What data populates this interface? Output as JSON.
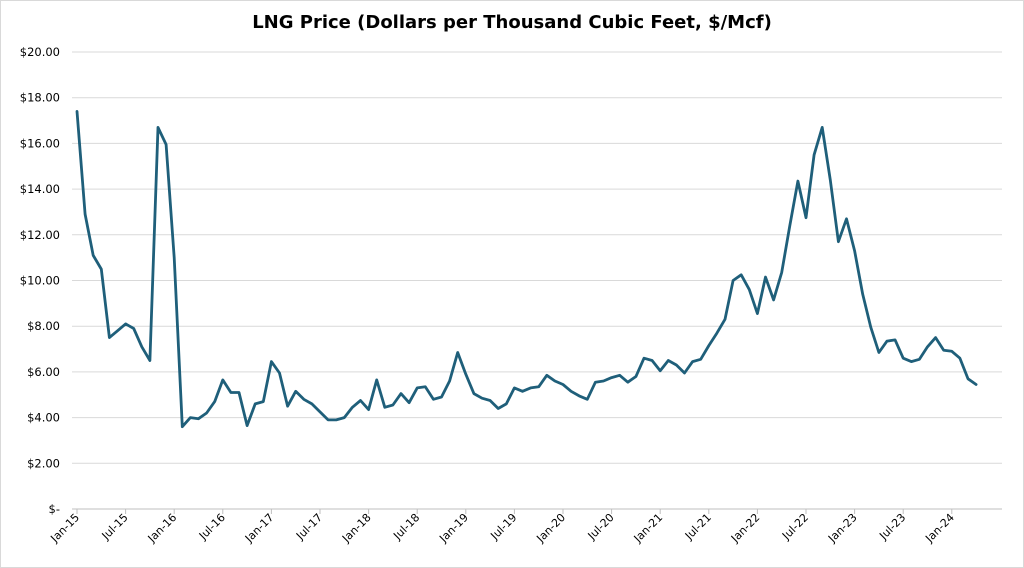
{
  "chart_data": {
    "type": "line",
    "title": "LNG Price (Dollars per Thousand Cubic Feet, $/Mcf)",
    "xlabel": "",
    "ylabel": "",
    "ylim": [
      0,
      20
    ],
    "grid": true,
    "y_ticks": [
      0,
      2,
      4,
      6,
      8,
      10,
      12,
      14,
      16,
      18,
      20
    ],
    "y_tick_labels": [
      "$-",
      "$2.00",
      "$4.00",
      "$6.00",
      "$8.00",
      "$10.00",
      "$12.00",
      "$14.00",
      "$16.00",
      "$18.00",
      "$20.00"
    ],
    "x_tick_labels": [
      "Jan-15",
      "Jul-15",
      "Jan-16",
      "Jul-16",
      "Jan-17",
      "Jul-17",
      "Jan-18",
      "Jul-18",
      "Jan-19",
      "Jul-19",
      "Jan-20",
      "Jul-20",
      "Jan-21",
      "Jul-21",
      "Jan-22",
      "Jul-22",
      "Jan-23",
      "Jul-23",
      "Jan-24"
    ],
    "x_tick_interval_months": 6,
    "start_month": "Jan-15",
    "series": [
      {
        "name": "LNG Price",
        "color": "#1f5f7a",
        "values": [
          17.4,
          12.9,
          11.1,
          10.5,
          7.5,
          7.8,
          8.1,
          7.9,
          7.1,
          6.5,
          16.7,
          15.95,
          11.0,
          3.6,
          4.0,
          3.95,
          4.2,
          4.7,
          5.65,
          5.1,
          5.1,
          3.65,
          4.6,
          4.7,
          6.45,
          5.95,
          4.5,
          5.15,
          4.8,
          4.6,
          4.25,
          3.9,
          3.9,
          4.0,
          4.45,
          4.75,
          4.35,
          5.65,
          4.45,
          4.55,
          5.05,
          4.65,
          5.3,
          5.35,
          4.8,
          4.9,
          5.6,
          6.85,
          5.9,
          5.05,
          4.85,
          4.75,
          4.4,
          4.6,
          5.3,
          5.15,
          5.3,
          5.35,
          5.85,
          5.6,
          5.45,
          5.15,
          4.95,
          4.8,
          5.55,
          5.6,
          5.75,
          5.85,
          5.55,
          5.8,
          6.6,
          6.5,
          6.05,
          6.5,
          6.3,
          5.95,
          6.45,
          6.55,
          7.15,
          7.7,
          8.3,
          10.0,
          10.25,
          9.6,
          8.55,
          10.15,
          9.15,
          10.35,
          12.4,
          14.35,
          12.75,
          15.5,
          16.7,
          14.4,
          11.7,
          12.7,
          11.3,
          9.4,
          7.95,
          6.85,
          7.35,
          7.4,
          6.6,
          6.45,
          6.55,
          7.1,
          7.5,
          6.95,
          6.9,
          6.6,
          5.7,
          5.45
        ]
      }
    ]
  }
}
